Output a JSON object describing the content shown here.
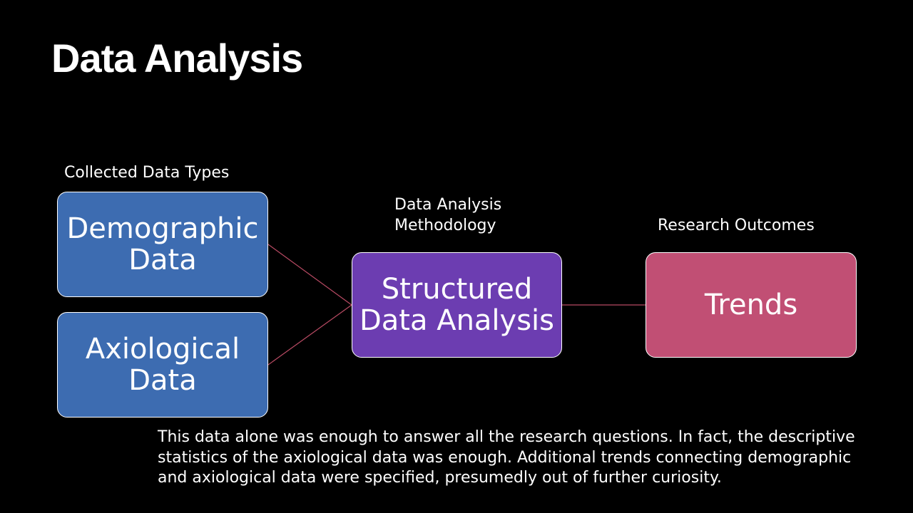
{
  "slide": {
    "title": "Data Analysis",
    "labels": {
      "collected": "Collected Data Types",
      "methodology": "Data Analysis Methodology",
      "outcomes": "Research Outcomes"
    },
    "boxes": {
      "demographic": {
        "text": "Demographic Data",
        "color": "#3d6cb1"
      },
      "axiological": {
        "text": "Axiological Data",
        "color": "#3d6cb1"
      },
      "structured": {
        "text": "Structured Data Analysis",
        "color": "#6c3db1"
      },
      "trends": {
        "text": "Trends",
        "color": "#c14f74"
      }
    },
    "connector_color": "#b84a63",
    "note": "This data alone was enough to answer all the research questions. In fact, the descriptive statistics of the axiological data was enough. Additional trends connecting demographic and axiological data were specified, presumedly out of further curiosity."
  }
}
